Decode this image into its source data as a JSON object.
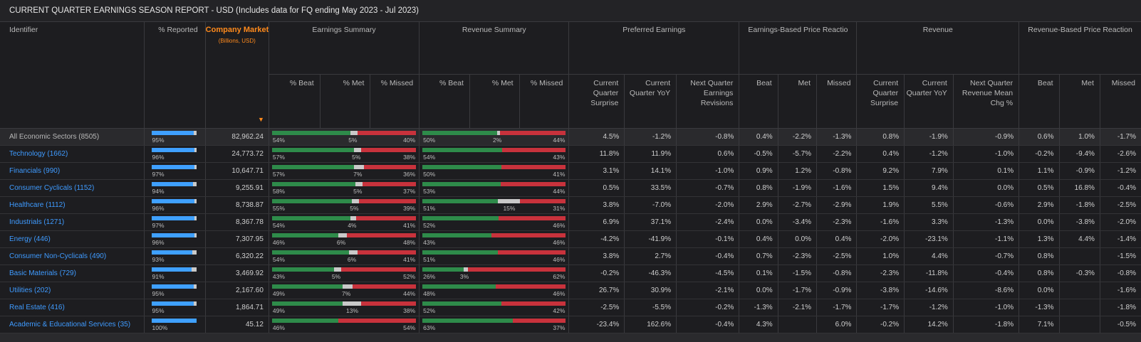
{
  "report": {
    "title": "CURRENT QUARTER EARNINGS SEASON REPORT - USD (Includes data for FQ ending May 2023 - Jul 2023)"
  },
  "headers": {
    "identifier": "Identifier",
    "pct_reported": "% Reported",
    "market_cap": "Company Market Cap",
    "market_cap_unit": "(Billions, USD)",
    "sort_icon": "sort-descending-icon",
    "earnings_summary": "Earnings Summary",
    "revenue_summary": "Revenue Summary",
    "preferred_earnings": "Preferred Earnings",
    "earnings_price_reaction": "Earnings-Based Price Reactio",
    "revenue": "Revenue",
    "revenue_price_reaction": "Revenue-Based Price Reaction",
    "pct_beat": "% Beat",
    "pct_met": "% Met",
    "pct_missed": "% Missed",
    "cq_surprise": "Current Quarter Surprise",
    "cq_yoy": "Current Quarter YoY",
    "nq_earnings_revisions": "Next Quarter Earnings Revisions",
    "beat": "Beat",
    "met": "Met",
    "missed": "Missed",
    "nq_revenue_mean_chg": "Next Quarter Revenue Mean Chg %"
  },
  "colors": {
    "beat": "#2e8b4a",
    "met": "#c9c9c9",
    "missed": "#c8323c",
    "reported": "#3fa0ff",
    "positive": "#4fc3f7",
    "negative": "#ff4a55",
    "accent": "#ff8a1c"
  },
  "rows": [
    {
      "name": "All Economic Sectors (8505)",
      "reported": "95%",
      "reported_frac": 0.95,
      "mcap": "82,962.24",
      "earn": {
        "beat": 54,
        "met": 5,
        "missed": 40,
        "beat_lbl": "54%",
        "met_lbl": "5%",
        "missed_lbl": "40%"
      },
      "rev": {
        "beat": 50,
        "met": 2,
        "missed": 44,
        "beat_lbl": "50%",
        "met_lbl": "2%",
        "missed_lbl": "44%"
      },
      "pe_surprise": "4.5%",
      "pe_yoy": "-1.2%",
      "pe_rev": "-0.8%",
      "ep_beat": "0.4%",
      "ep_met": "-2.2%",
      "ep_missed": "-1.3%",
      "r_surprise": "0.8%",
      "r_yoy": "-1.9%",
      "r_mean": "-0.9%",
      "rp_beat": "0.6%",
      "rp_met": "1.0%",
      "rp_missed": "-1.7%"
    },
    {
      "name": "Technology (1662)",
      "reported": "96%",
      "reported_frac": 0.96,
      "mcap": "24,773.72",
      "earn": {
        "beat": 57,
        "met": 5,
        "missed": 38,
        "beat_lbl": "57%",
        "met_lbl": "5%",
        "missed_lbl": "38%"
      },
      "rev": {
        "beat": 54,
        "met": 0,
        "missed": 43,
        "beat_lbl": "54%",
        "met_lbl": "",
        "missed_lbl": "43%"
      },
      "pe_surprise": "11.8%",
      "pe_yoy": "11.9%",
      "pe_rev": "0.6%",
      "ep_beat": "-0.5%",
      "ep_met": "-5.7%",
      "ep_missed": "-2.2%",
      "r_surprise": "0.4%",
      "r_yoy": "-1.2%",
      "r_mean": "-1.0%",
      "rp_beat": "-0.2%",
      "rp_met": "-9.4%",
      "rp_missed": "-2.6%"
    },
    {
      "name": "Financials (990)",
      "reported": "97%",
      "reported_frac": 0.97,
      "mcap": "10,647.71",
      "earn": {
        "beat": 57,
        "met": 7,
        "missed": 36,
        "beat_lbl": "57%",
        "met_lbl": "7%",
        "missed_lbl": "36%"
      },
      "rev": {
        "beat": 50,
        "met": 0,
        "missed": 41,
        "beat_lbl": "50%",
        "met_lbl": "",
        "missed_lbl": "41%"
      },
      "pe_surprise": "3.1%",
      "pe_yoy": "14.1%",
      "pe_rev": "-1.0%",
      "ep_beat": "0.9%",
      "ep_met": "1.2%",
      "ep_missed": "-0.8%",
      "r_surprise": "9.2%",
      "r_yoy": "7.9%",
      "r_mean": "0.1%",
      "rp_beat": "1.1%",
      "rp_met": "-0.9%",
      "rp_missed": "-1.2%"
    },
    {
      "name": "Consumer Cyclicals (1152)",
      "reported": "94%",
      "reported_frac": 0.94,
      "mcap": "9,255.91",
      "earn": {
        "beat": 58,
        "met": 5,
        "missed": 37,
        "beat_lbl": "58%",
        "met_lbl": "5%",
        "missed_lbl": "37%"
      },
      "rev": {
        "beat": 53,
        "met": 0,
        "missed": 44,
        "beat_lbl": "53%",
        "met_lbl": "",
        "missed_lbl": "44%"
      },
      "pe_surprise": "0.5%",
      "pe_yoy": "33.5%",
      "pe_rev": "-0.7%",
      "ep_beat": "0.8%",
      "ep_met": "-1.9%",
      "ep_missed": "-1.6%",
      "r_surprise": "1.5%",
      "r_yoy": "9.4%",
      "r_mean": "0.0%",
      "rp_beat": "0.5%",
      "rp_met": "16.8%",
      "rp_missed": "-0.4%"
    },
    {
      "name": "Healthcare (1112)",
      "reported": "96%",
      "reported_frac": 0.96,
      "mcap": "8,738.87",
      "earn": {
        "beat": 55,
        "met": 5,
        "missed": 39,
        "beat_lbl": "55%",
        "met_lbl": "5%",
        "missed_lbl": "39%"
      },
      "rev": {
        "beat": 51,
        "met": 15,
        "missed": 31,
        "beat_lbl": "51%",
        "met_lbl": "15%",
        "missed_lbl": "31%"
      },
      "pe_surprise": "3.8%",
      "pe_yoy": "-7.0%",
      "pe_rev": "-2.0%",
      "ep_beat": "2.9%",
      "ep_met": "-2.7%",
      "ep_missed": "-2.9%",
      "r_surprise": "1.9%",
      "r_yoy": "5.5%",
      "r_mean": "-0.6%",
      "rp_beat": "2.9%",
      "rp_met": "-1.8%",
      "rp_missed": "-2.5%"
    },
    {
      "name": "Industrials (1271)",
      "reported": "97%",
      "reported_frac": 0.97,
      "mcap": "8,367.78",
      "earn": {
        "beat": 54,
        "met": 4,
        "missed": 41,
        "beat_lbl": "54%",
        "met_lbl": "4%",
        "missed_lbl": "41%"
      },
      "rev": {
        "beat": 52,
        "met": 0,
        "missed": 46,
        "beat_lbl": "52%",
        "met_lbl": "",
        "missed_lbl": "46%"
      },
      "pe_surprise": "6.9%",
      "pe_yoy": "37.1%",
      "pe_rev": "-2.4%",
      "ep_beat": "0.0%",
      "ep_met": "-3.4%",
      "ep_missed": "-2.3%",
      "r_surprise": "-1.6%",
      "r_yoy": "3.3%",
      "r_mean": "-1.3%",
      "rp_beat": "0.0%",
      "rp_met": "-3.8%",
      "rp_missed": "-2.0%"
    },
    {
      "name": "Energy (446)",
      "reported": "96%",
      "reported_frac": 0.96,
      "mcap": "7,307.95",
      "earn": {
        "beat": 46,
        "met": 6,
        "missed": 48,
        "beat_lbl": "46%",
        "met_lbl": "6%",
        "missed_lbl": "48%"
      },
      "rev": {
        "beat": 43,
        "met": 0,
        "missed": 46,
        "beat_lbl": "43%",
        "met_lbl": "",
        "missed_lbl": "46%"
      },
      "pe_surprise": "-4.2%",
      "pe_yoy": "-41.9%",
      "pe_rev": "-0.1%",
      "ep_beat": "0.4%",
      "ep_met": "0.0%",
      "ep_missed": "0.4%",
      "r_surprise": "-2.0%",
      "r_yoy": "-23.1%",
      "r_mean": "-1.1%",
      "rp_beat": "1.3%",
      "rp_met": "4.4%",
      "rp_missed": "-1.4%"
    },
    {
      "name": "Consumer Non-Cyclicals (490)",
      "reported": "93%",
      "reported_frac": 0.93,
      "mcap": "6,320.22",
      "earn": {
        "beat": 54,
        "met": 6,
        "missed": 41,
        "beat_lbl": "54%",
        "met_lbl": "6%",
        "missed_lbl": "41%"
      },
      "rev": {
        "beat": 51,
        "met": 0,
        "missed": 46,
        "beat_lbl": "51%",
        "met_lbl": "",
        "missed_lbl": "46%"
      },
      "pe_surprise": "3.8%",
      "pe_yoy": "2.7%",
      "pe_rev": "-0.4%",
      "ep_beat": "0.7%",
      "ep_met": "-2.3%",
      "ep_missed": "-2.5%",
      "r_surprise": "1.0%",
      "r_yoy": "4.4%",
      "r_mean": "-0.7%",
      "rp_beat": "0.8%",
      "rp_met": "",
      "rp_missed": "-1.5%"
    },
    {
      "name": "Basic Materials (729)",
      "reported": "91%",
      "reported_frac": 0.91,
      "mcap": "3,469.92",
      "earn": {
        "beat": 43,
        "met": 5,
        "missed": 52,
        "beat_lbl": "43%",
        "met_lbl": "5%",
        "missed_lbl": "52%"
      },
      "rev": {
        "beat": 26,
        "met": 3,
        "missed": 62,
        "beat_lbl": "26%",
        "met_lbl": "3%",
        "missed_lbl": "62%"
      },
      "pe_surprise": "-0.2%",
      "pe_yoy": "-46.3%",
      "pe_rev": "-4.5%",
      "ep_beat": "0.1%",
      "ep_met": "-1.5%",
      "ep_missed": "-0.8%",
      "r_surprise": "-2.3%",
      "r_yoy": "-11.8%",
      "r_mean": "-0.4%",
      "rp_beat": "0.8%",
      "rp_met": "-0.3%",
      "rp_missed": "-0.8%"
    },
    {
      "name": "Utilities (202)",
      "reported": "95%",
      "reported_frac": 0.95,
      "mcap": "2,167.60",
      "earn": {
        "beat": 49,
        "met": 7,
        "missed": 44,
        "beat_lbl": "49%",
        "met_lbl": "7%",
        "missed_lbl": "44%"
      },
      "rev": {
        "beat": 48,
        "met": 0,
        "missed": 46,
        "beat_lbl": "48%",
        "met_lbl": "",
        "missed_lbl": "46%"
      },
      "pe_surprise": "26.7%",
      "pe_yoy": "30.9%",
      "pe_rev": "-2.1%",
      "ep_beat": "0.0%",
      "ep_met": "-1.7%",
      "ep_missed": "-0.9%",
      "r_surprise": "-3.8%",
      "r_yoy": "-14.6%",
      "r_mean": "-8.6%",
      "rp_beat": "0.0%",
      "rp_met": "",
      "rp_missed": "-1.6%"
    },
    {
      "name": "Real Estate (416)",
      "reported": "95%",
      "reported_frac": 0.95,
      "mcap": "1,864.71",
      "earn": {
        "beat": 49,
        "met": 13,
        "missed": 38,
        "beat_lbl": "49%",
        "met_lbl": "13%",
        "missed_lbl": "38%"
      },
      "rev": {
        "beat": 52,
        "met": 0,
        "missed": 42,
        "beat_lbl": "52%",
        "met_lbl": "",
        "missed_lbl": "42%"
      },
      "pe_surprise": "-2.5%",
      "pe_yoy": "-5.5%",
      "pe_rev": "-0.2%",
      "ep_beat": "-1.3%",
      "ep_met": "-2.1%",
      "ep_missed": "-1.7%",
      "r_surprise": "-1.7%",
      "r_yoy": "-1.2%",
      "r_mean": "-1.0%",
      "rp_beat": "-1.3%",
      "rp_met": "",
      "rp_missed": "-1.8%"
    },
    {
      "name": "Academic & Educational Services (35)",
      "reported": "100%",
      "reported_frac": 1.0,
      "mcap": "45.12",
      "earn": {
        "beat": 46,
        "met": 0,
        "missed": 54,
        "beat_lbl": "46%",
        "met_lbl": "",
        "missed_lbl": "54%"
      },
      "rev": {
        "beat": 63,
        "met": 0,
        "missed": 37,
        "beat_lbl": "63%",
        "met_lbl": "",
        "missed_lbl": "37%"
      },
      "pe_surprise": "-23.4%",
      "pe_yoy": "162.6%",
      "pe_rev": "-0.4%",
      "ep_beat": "4.3%",
      "ep_met": "",
      "ep_missed": "6.0%",
      "r_surprise": "-0.2%",
      "r_yoy": "14.2%",
      "r_mean": "-1.8%",
      "rp_beat": "7.1%",
      "rp_met": "",
      "rp_missed": "-0.5%"
    }
  ]
}
